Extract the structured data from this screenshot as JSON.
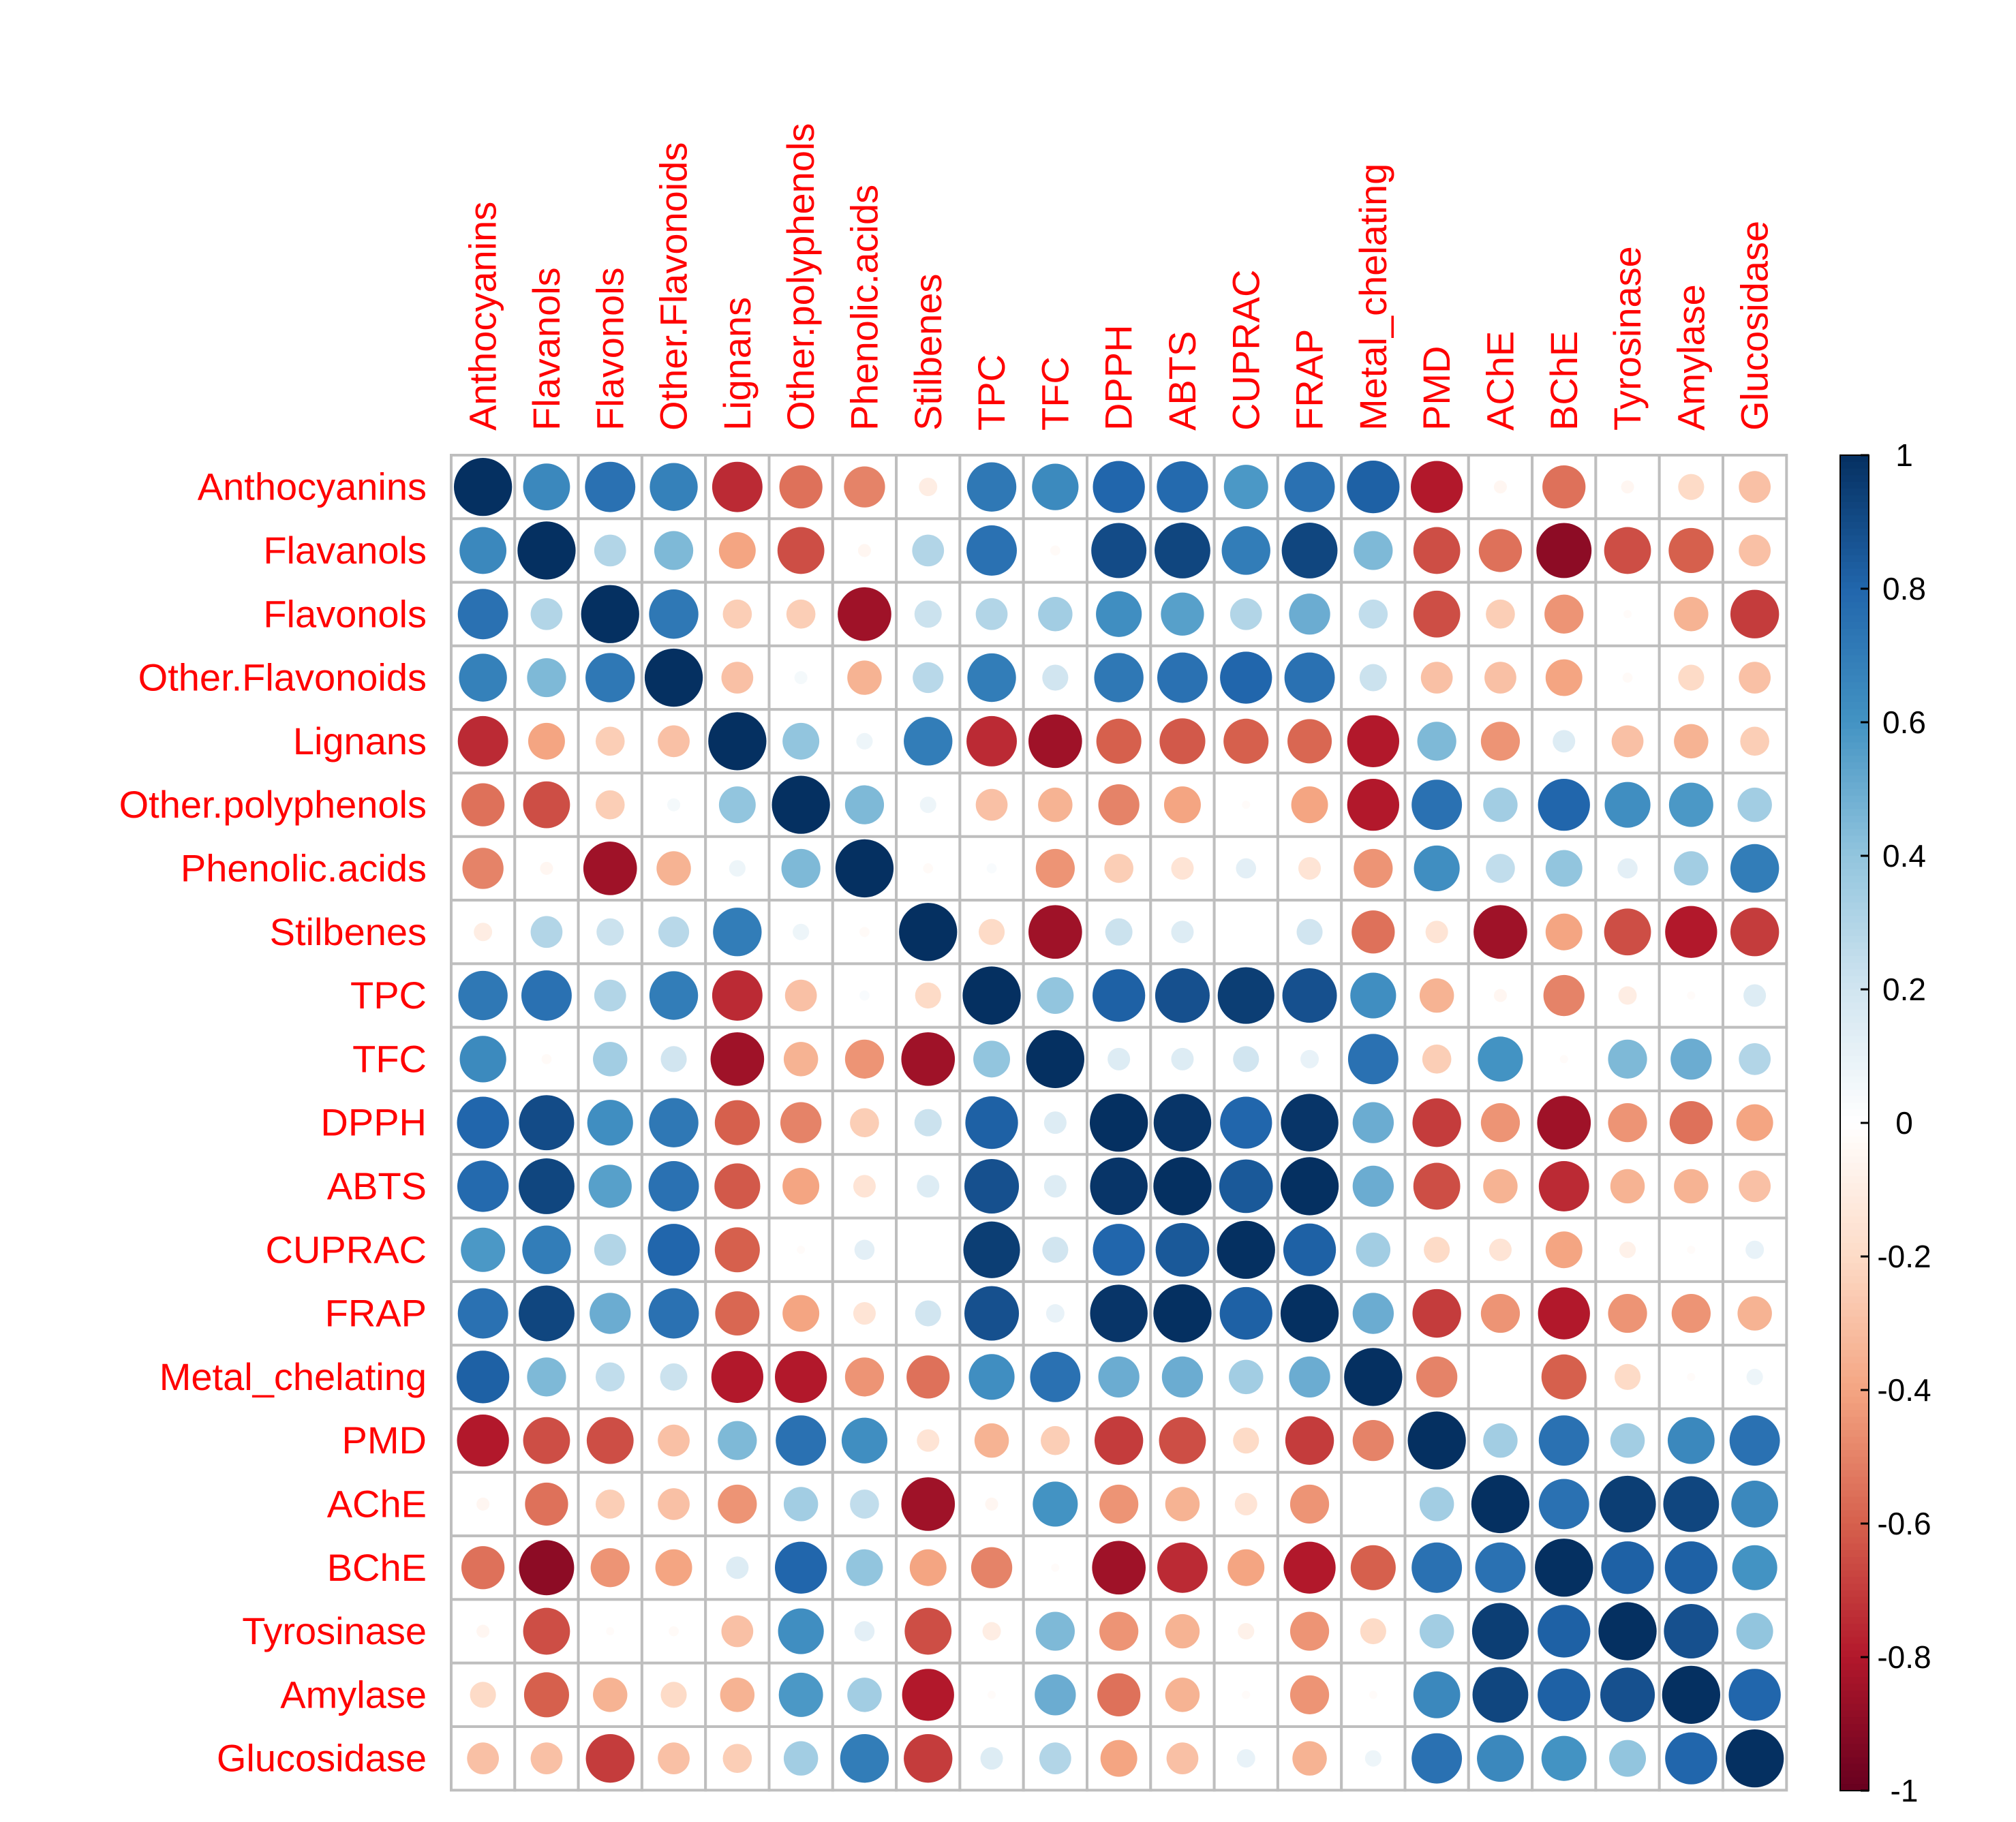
{
  "chart_data": {
    "type": "heatmap",
    "subtype": "correlation-circles",
    "title": "",
    "xlabel": "",
    "ylabel": "",
    "variables": [
      "Anthocyanins",
      "Flavanols",
      "Flavonols",
      "Other.Flavonoids",
      "Lignans",
      "Other.polyphenols",
      "Phenolic.acids",
      "Stilbenes",
      "TPC",
      "TFC",
      "DPPH",
      "ABTS",
      "CUPRAC",
      "FRAP",
      "Metal_chelating",
      "PMD",
      "AChE",
      "BChE",
      "Tyrosinase",
      "Amylase",
      "Glucosidase"
    ],
    "matrix": [
      [
        1.0,
        0.65,
        0.75,
        0.68,
        -0.75,
        -0.55,
        -0.5,
        -0.1,
        0.72,
        0.64,
        0.8,
        0.78,
        0.58,
        0.75,
        0.82,
        -0.8,
        -0.05,
        -0.55,
        -0.05,
        -0.2,
        -0.3
      ],
      [
        0.65,
        1.0,
        0.3,
        0.45,
        -0.4,
        -0.65,
        -0.05,
        0.3,
        0.75,
        -0.03,
        0.9,
        0.92,
        0.7,
        0.92,
        0.45,
        -0.65,
        -0.55,
        -0.9,
        -0.65,
        -0.6,
        -0.3
      ],
      [
        0.75,
        0.3,
        1.0,
        0.72,
        -0.25,
        -0.25,
        -0.85,
        0.22,
        0.3,
        0.35,
        0.62,
        0.55,
        0.3,
        0.5,
        0.25,
        -0.65,
        -0.25,
        -0.45,
        -0.02,
        -0.35,
        -0.7
      ],
      [
        0.68,
        0.45,
        0.72,
        1.0,
        -0.3,
        0.05,
        -0.35,
        0.28,
        0.7,
        0.2,
        0.72,
        0.75,
        0.8,
        0.75,
        0.22,
        -0.3,
        -0.3,
        -0.4,
        -0.03,
        -0.2,
        -0.3
      ],
      [
        -0.75,
        -0.4,
        -0.25,
        -0.3,
        1.0,
        0.4,
        0.08,
        0.7,
        -0.75,
        -0.85,
        -0.6,
        -0.62,
        -0.6,
        -0.58,
        -0.8,
        0.45,
        -0.45,
        0.15,
        -0.3,
        -0.35,
        -0.25
      ],
      [
        -0.55,
        -0.65,
        -0.25,
        0.05,
        0.4,
        1.0,
        0.45,
        0.08,
        -0.3,
        -0.35,
        -0.5,
        -0.4,
        -0.02,
        -0.4,
        -0.8,
        0.75,
        0.35,
        0.8,
        0.62,
        0.58,
        0.35
      ],
      [
        -0.5,
        -0.05,
        -0.85,
        -0.35,
        0.08,
        0.45,
        1.0,
        -0.03,
        0.03,
        -0.45,
        -0.25,
        -0.15,
        0.12,
        -0.15,
        -0.45,
        0.62,
        0.25,
        0.4,
        0.12,
        0.35,
        0.7
      ],
      [
        -0.1,
        0.3,
        0.22,
        0.28,
        0.7,
        0.08,
        -0.03,
        1.0,
        -0.2,
        -0.85,
        0.22,
        0.15,
        0.0,
        0.2,
        -0.55,
        -0.15,
        -0.85,
        -0.4,
        -0.65,
        -0.8,
        -0.7
      ],
      [
        0.72,
        0.75,
        0.3,
        0.7,
        -0.75,
        -0.3,
        0.03,
        -0.2,
        1.0,
        0.4,
        0.82,
        0.88,
        0.95,
        0.88,
        0.62,
        -0.35,
        -0.05,
        -0.5,
        -0.1,
        -0.02,
        0.15
      ],
      [
        0.64,
        -0.03,
        0.35,
        0.2,
        -0.85,
        -0.35,
        -0.45,
        -0.85,
        0.4,
        1.0,
        0.15,
        0.15,
        0.2,
        0.1,
        0.75,
        -0.25,
        0.6,
        -0.02,
        0.45,
        0.5,
        0.3
      ],
      [
        0.8,
        0.9,
        0.62,
        0.72,
        -0.6,
        -0.5,
        -0.25,
        0.22,
        0.82,
        0.15,
        1.0,
        0.98,
        0.8,
        0.98,
        0.5,
        -0.7,
        -0.45,
        -0.85,
        -0.45,
        -0.55,
        -0.4
      ],
      [
        0.78,
        0.92,
        0.55,
        0.75,
        -0.62,
        -0.4,
        -0.15,
        0.15,
        0.88,
        0.15,
        0.98,
        1.0,
        0.85,
        1.0,
        0.5,
        -0.65,
        -0.35,
        -0.75,
        -0.35,
        -0.35,
        -0.3
      ],
      [
        0.58,
        0.7,
        0.3,
        0.8,
        -0.6,
        -0.02,
        0.12,
        0.0,
        0.95,
        0.2,
        0.8,
        0.85,
        1.0,
        0.82,
        0.35,
        -0.2,
        -0.15,
        -0.4,
        -0.08,
        -0.02,
        0.1
      ],
      [
        0.75,
        0.92,
        0.5,
        0.75,
        -0.58,
        -0.4,
        -0.15,
        0.2,
        0.88,
        0.1,
        0.98,
        1.0,
        0.82,
        1.0,
        0.5,
        -0.7,
        -0.45,
        -0.8,
        -0.45,
        -0.45,
        -0.35
      ],
      [
        0.82,
        0.45,
        0.25,
        0.22,
        -0.8,
        -0.8,
        -0.45,
        -0.55,
        0.62,
        0.75,
        0.5,
        0.5,
        0.35,
        0.5,
        1.0,
        -0.5,
        0.0,
        -0.6,
        -0.2,
        -0.02,
        0.08
      ],
      [
        -0.8,
        -0.65,
        -0.65,
        -0.3,
        0.45,
        0.75,
        0.62,
        -0.15,
        -0.35,
        -0.25,
        -0.7,
        -0.65,
        -0.2,
        -0.7,
        -0.5,
        1.0,
        0.35,
        0.75,
        0.35,
        0.65,
        0.75
      ],
      [
        -0.05,
        -0.55,
        -0.25,
        -0.3,
        -0.45,
        0.35,
        0.25,
        -0.85,
        -0.05,
        0.6,
        -0.45,
        -0.35,
        -0.15,
        -0.45,
        0.0,
        0.35,
        1.0,
        0.75,
        0.95,
        0.92,
        0.65
      ],
      [
        -0.55,
        -0.9,
        -0.45,
        -0.4,
        0.15,
        0.8,
        0.4,
        -0.4,
        -0.5,
        -0.02,
        -0.85,
        -0.75,
        -0.4,
        -0.8,
        -0.6,
        0.75,
        0.75,
        1.0,
        0.82,
        0.82,
        0.6
      ],
      [
        -0.05,
        -0.65,
        -0.02,
        -0.03,
        -0.3,
        0.62,
        0.12,
        -0.65,
        -0.1,
        0.45,
        -0.45,
        -0.35,
        -0.08,
        -0.45,
        -0.2,
        0.35,
        0.95,
        0.82,
        1.0,
        0.88,
        0.4
      ],
      [
        -0.2,
        -0.6,
        -0.35,
        -0.2,
        -0.35,
        0.58,
        0.35,
        -0.8,
        -0.02,
        0.5,
        -0.55,
        -0.35,
        -0.02,
        -0.45,
        -0.02,
        0.65,
        0.92,
        0.82,
        0.88,
        1.0,
        0.8
      ],
      [
        -0.3,
        -0.3,
        -0.7,
        -0.3,
        -0.25,
        0.35,
        0.7,
        -0.7,
        0.15,
        0.3,
        -0.4,
        -0.3,
        0.1,
        -0.35,
        0.08,
        0.75,
        0.65,
        0.6,
        0.4,
        0.8,
        1.0
      ]
    ],
    "colorbar": {
      "range": [
        -1,
        1
      ],
      "ticks": [
        "1",
        "0.8",
        "0.6",
        "0.4",
        "0.2",
        "0",
        "-0.2",
        "-0.4",
        "-0.6",
        "-0.8",
        "-1"
      ]
    },
    "palette": [
      "#67001F",
      "#B2182B",
      "#D6604D",
      "#F4A582",
      "#FDDBC7",
      "#FFFFFF",
      "#D1E5F0",
      "#92C5DE",
      "#4393C3",
      "#2166AC",
      "#053061"
    ],
    "grid_color": "#bebebe",
    "label_color": "#ff0000"
  }
}
